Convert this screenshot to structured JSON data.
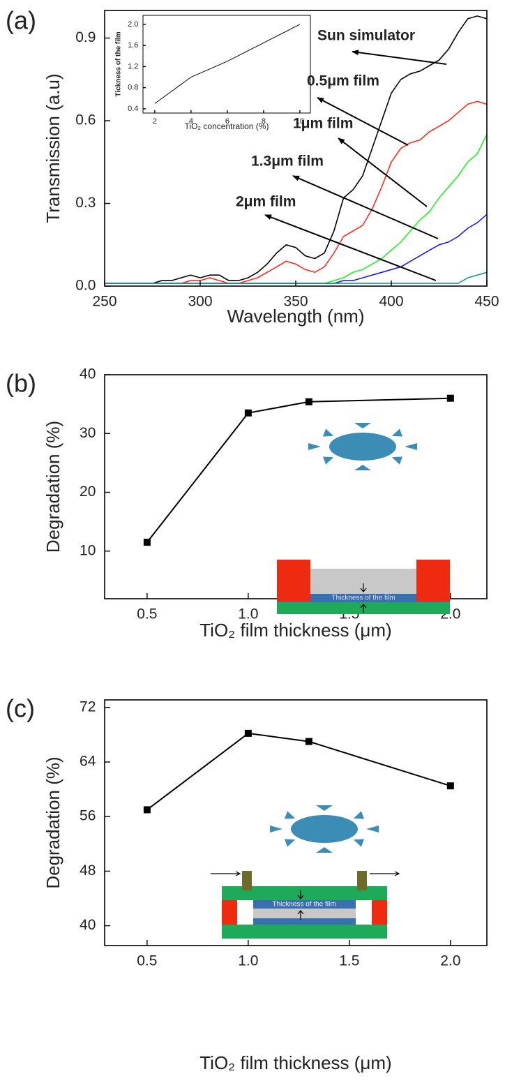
{
  "chart_data": [
    {
      "type": "line",
      "panel_label": "(a)",
      "xlabel": "Wavelength (nm)",
      "ylabel": "Transmission (a.u)",
      "x": [
        250,
        255,
        260,
        265,
        270,
        275,
        280,
        285,
        290,
        295,
        300,
        305,
        310,
        315,
        320,
        325,
        330,
        335,
        340,
        345,
        350,
        355,
        360,
        365,
        370,
        375,
        380,
        385,
        390,
        395,
        400,
        405,
        410,
        415,
        420,
        425,
        430,
        435,
        440,
        445,
        450
      ],
      "series": [
        {
          "name": "Sun simulator",
          "color": "#000000",
          "values": [
            0.01,
            0.01,
            0.01,
            0.01,
            0.01,
            0.01,
            0.02,
            0.02,
            0.03,
            0.04,
            0.03,
            0.04,
            0.04,
            0.02,
            0.02,
            0.03,
            0.05,
            0.08,
            0.12,
            0.15,
            0.14,
            0.11,
            0.1,
            0.12,
            0.2,
            0.32,
            0.35,
            0.4,
            0.5,
            0.6,
            0.7,
            0.75,
            0.77,
            0.78,
            0.8,
            0.82,
            0.86,
            0.92,
            0.97,
            0.98,
            0.97
          ]
        },
        {
          "name": "0.5μm film",
          "color": "#ff2a1a",
          "values": [
            0.01,
            0.01,
            0.01,
            0.01,
            0.01,
            0.01,
            0.01,
            0.01,
            0.01,
            0.02,
            0.02,
            0.03,
            0.02,
            0.01,
            0.01,
            0.02,
            0.03,
            0.05,
            0.07,
            0.09,
            0.08,
            0.06,
            0.05,
            0.07,
            0.12,
            0.18,
            0.2,
            0.22,
            0.28,
            0.36,
            0.45,
            0.5,
            0.52,
            0.53,
            0.56,
            0.58,
            0.6,
            0.63,
            0.66,
            0.67,
            0.66
          ]
        },
        {
          "name": "1μm film",
          "color": "#22ee22",
          "values": [
            0.01,
            0.01,
            0.01,
            0.01,
            0.01,
            0.01,
            0.01,
            0.01,
            0.01,
            0.01,
            0.01,
            0.01,
            0.01,
            0.01,
            0.01,
            0.01,
            0.01,
            0.01,
            0.01,
            0.01,
            0.01,
            0.01,
            0.01,
            0.01,
            0.02,
            0.03,
            0.05,
            0.06,
            0.08,
            0.1,
            0.13,
            0.16,
            0.2,
            0.24,
            0.27,
            0.32,
            0.36,
            0.4,
            0.45,
            0.48,
            0.55
          ]
        },
        {
          "name": "1.3μm film",
          "color": "#1a1aee",
          "values": [
            0.01,
            0.01,
            0.01,
            0.01,
            0.01,
            0.01,
            0.01,
            0.01,
            0.01,
            0.01,
            0.01,
            0.01,
            0.01,
            0.01,
            0.01,
            0.01,
            0.01,
            0.01,
            0.01,
            0.01,
            0.01,
            0.01,
            0.01,
            0.01,
            0.01,
            0.02,
            0.02,
            0.03,
            0.04,
            0.05,
            0.06,
            0.07,
            0.09,
            0.11,
            0.13,
            0.15,
            0.16,
            0.18,
            0.21,
            0.23,
            0.26
          ]
        },
        {
          "name": "2μm film",
          "color": "#1a9a9a",
          "values": [
            0.01,
            0.01,
            0.01,
            0.01,
            0.01,
            0.01,
            0.01,
            0.01,
            0.01,
            0.01,
            0.01,
            0.01,
            0.01,
            0.01,
            0.01,
            0.01,
            0.01,
            0.01,
            0.01,
            0.01,
            0.01,
            0.01,
            0.01,
            0.01,
            0.01,
            0.01,
            0.01,
            0.01,
            0.01,
            0.01,
            0.01,
            0.01,
            0.01,
            0.01,
            0.01,
            0.01,
            0.01,
            0.01,
            0.03,
            0.04,
            0.05
          ]
        }
      ],
      "xlim": [
        250,
        450
      ],
      "ylim": [
        0,
        1.0
      ],
      "xticks": [
        250,
        300,
        350,
        400,
        450
      ],
      "yticks": [
        {
          "value": 0,
          "label": "0.0"
        },
        0.3,
        0.6,
        0.9
      ]
    },
    {
      "type": "line",
      "xlabel": "TiO₂ concentration (%)",
      "ylabel": "Tickness of the film",
      "x": [
        2,
        4,
        6,
        8,
        10
      ],
      "values": [
        0.5,
        1.0,
        1.3,
        1.65,
        2.0
      ],
      "color": "#000000",
      "xlim": [
        1.35,
        10.58
      ],
      "ylim": [
        0.32,
        2.17
      ],
      "xticks": [
        2,
        4,
        6,
        8,
        10
      ],
      "yticks": [
        0.4,
        0.8,
        1.2,
        1.6,
        {
          "value": 2,
          "label": "2.0"
        }
      ]
    },
    {
      "type": "line",
      "panel_label": "(b)",
      "xlabel": "TiO₂ film thickness (μm)",
      "ylabel": "Degradation (%)",
      "x": [
        0.5,
        1.0,
        1.3,
        2.0
      ],
      "values": [
        11.5,
        33.5,
        35.4,
        36.0
      ],
      "color": "#000000",
      "xlim": [
        0.29,
        2.18
      ],
      "ylim": [
        1.9,
        40
      ],
      "xticks": [
        0.5,
        {
          "value": 1,
          "label": "1.0"
        },
        1.5,
        {
          "value": 2,
          "label": "2.0"
        }
      ],
      "yticks": [
        10,
        20,
        30,
        40
      ],
      "schematic_label": "Thickness of the film"
    },
    {
      "type": "line",
      "panel_label": "(c)",
      "xlabel": "TiO₂ film thickness (μm)",
      "ylabel": "Degradation (%)",
      "x": [
        0.5,
        1.0,
        1.3,
        2.0
      ],
      "values": [
        57.0,
        68.2,
        67.0,
        60.5
      ],
      "color": "#000000",
      "xlim": [
        0.29,
        2.18
      ],
      "ylim": [
        37.1,
        73.1
      ],
      "xticks": [
        0.5,
        {
          "value": 1,
          "label": "1.0"
        },
        1.5,
        {
          "value": 2,
          "label": "2.0"
        }
      ],
      "yticks": [
        40,
        48,
        56,
        64,
        72
      ],
      "schematic_label": "Thickness of the film"
    }
  ]
}
